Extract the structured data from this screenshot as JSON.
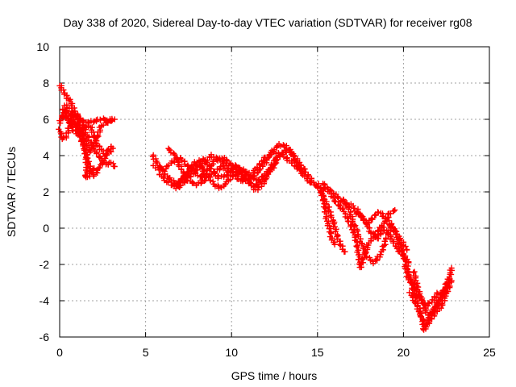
{
  "chart_data": {
    "type": "scatter",
    "title": "Day 338 of 2020, Sidereal Day-to-day VTEC variation (SDTVAR) for receiver rg08",
    "xlabel": "GPS time / hours",
    "ylabel": "SDTVAR / TECUs",
    "xlim": [
      0,
      25
    ],
    "ylim": [
      -6,
      10
    ],
    "xticks": [
      0,
      5,
      10,
      15,
      20,
      25
    ],
    "yticks": [
      -6,
      -4,
      -2,
      0,
      2,
      4,
      6,
      8,
      10
    ],
    "grid": true,
    "marker": "+",
    "series": [
      {
        "name": "SDTVAR",
        "color": "#ff0000",
        "tracks": [
          [
            [
              0.0,
              7.9
            ],
            [
              0.3,
              7.4
            ],
            [
              0.6,
              7.0
            ],
            [
              0.9,
              6.4
            ],
            [
              1.2,
              5.9
            ],
            [
              1.5,
              5.3
            ],
            [
              1.8,
              4.8
            ],
            [
              2.1,
              4.2
            ],
            [
              2.4,
              3.8
            ],
            [
              2.7,
              3.5
            ],
            [
              3.0,
              3.6
            ],
            [
              3.2,
              3.4
            ]
          ],
          [
            [
              0.0,
              5.8
            ],
            [
              0.3,
              6.5
            ],
            [
              0.6,
              6.3
            ],
            [
              0.9,
              5.7
            ],
            [
              1.2,
              5.0
            ],
            [
              1.4,
              4.5
            ],
            [
              1.6,
              3.9
            ],
            [
              1.8,
              3.2
            ],
            [
              2.0,
              2.9
            ],
            [
              2.3,
              3.3
            ],
            [
              2.7,
              4.0
            ],
            [
              3.1,
              4.4
            ]
          ],
          [
            [
              0.0,
              5.4
            ],
            [
              0.2,
              4.9
            ],
            [
              0.4,
              5.1
            ],
            [
              0.7,
              6.0
            ],
            [
              1.0,
              6.3
            ],
            [
              1.3,
              5.9
            ],
            [
              1.6,
              5.8
            ],
            [
              2.0,
              5.9
            ],
            [
              2.4,
              6.0
            ],
            [
              2.8,
              6.0
            ],
            [
              3.2,
              6.0
            ]
          ],
          [
            [
              0.1,
              6.2
            ],
            [
              0.5,
              6.0
            ],
            [
              0.9,
              5.8
            ],
            [
              1.3,
              5.4
            ],
            [
              1.6,
              4.6
            ],
            [
              1.8,
              4.2
            ],
            [
              2.1,
              4.8
            ],
            [
              2.4,
              5.6
            ],
            [
              2.7,
              5.8
            ],
            [
              3.0,
              5.9
            ]
          ],
          [
            [
              0.2,
              6.6
            ],
            [
              0.4,
              6.2
            ],
            [
              0.7,
              5.5
            ],
            [
              1.0,
              5.2
            ],
            [
              1.4,
              5.6
            ],
            [
              1.8,
              5.6
            ],
            [
              2.2,
              4.6
            ],
            [
              2.6,
              4.1
            ],
            [
              3.0,
              4.5
            ]
          ],
          [
            [
              0.3,
              6.8
            ],
            [
              0.6,
              6.5
            ],
            [
              1.0,
              6.1
            ],
            [
              1.4,
              4.8
            ],
            [
              1.6,
              3.3
            ],
            [
              1.5,
              2.8
            ],
            [
              1.7,
              2.9
            ],
            [
              2.0,
              3.3
            ]
          ],
          [
            [
              5.4,
              4.0
            ],
            [
              5.8,
              3.4
            ],
            [
              6.3,
              2.8
            ],
            [
              6.8,
              2.4
            ],
            [
              7.3,
              2.9
            ],
            [
              7.9,
              3.6
            ],
            [
              8.4,
              3.8
            ],
            [
              8.8,
              3.3
            ],
            [
              9.2,
              2.8
            ],
            [
              9.7,
              2.9
            ],
            [
              10.2,
              3.4
            ],
            [
              10.7,
              3.0
            ],
            [
              11.2,
              2.8
            ],
            [
              11.7,
              3.3
            ],
            [
              12.1,
              3.8
            ],
            [
              12.4,
              4.3
            ],
            [
              12.8,
              4.6
            ],
            [
              13.2,
              4.5
            ],
            [
              13.6,
              4.0
            ],
            [
              14.0,
              3.5
            ],
            [
              14.4,
              3.0
            ],
            [
              14.8,
              2.4
            ],
            [
              15.2,
              2.2
            ],
            [
              15.6,
              2.2
            ],
            [
              16.0,
              1.9
            ],
            [
              16.4,
              1.5
            ],
            [
              16.8,
              1.2
            ]
          ],
          [
            [
              5.5,
              3.4
            ],
            [
              6.0,
              3.2
            ],
            [
              6.5,
              3.6
            ],
            [
              7.0,
              3.9
            ],
            [
              7.4,
              3.5
            ],
            [
              7.8,
              3.1
            ],
            [
              8.2,
              2.8
            ],
            [
              8.6,
              3.2
            ],
            [
              9.0,
              3.7
            ],
            [
              9.5,
              3.9
            ],
            [
              10.0,
              3.5
            ],
            [
              10.5,
              3.3
            ],
            [
              11.0,
              3.0
            ],
            [
              11.5,
              2.6
            ],
            [
              12.0,
              3.0
            ],
            [
              12.5,
              3.6
            ],
            [
              13.0,
              4.2
            ],
            [
              13.4,
              4.3
            ],
            [
              13.8,
              3.6
            ],
            [
              14.2,
              2.9
            ],
            [
              14.6,
              2.5
            ]
          ],
          [
            [
              6.3,
              4.4
            ],
            [
              6.7,
              4.0
            ],
            [
              7.1,
              3.2
            ],
            [
              7.5,
              2.6
            ],
            [
              8.0,
              2.4
            ],
            [
              8.5,
              2.7
            ],
            [
              9.0,
              3.1
            ],
            [
              9.5,
              3.4
            ],
            [
              10.0,
              3.0
            ],
            [
              10.5,
              2.6
            ],
            [
              11.0,
              2.7
            ],
            [
              11.5,
              3.4
            ],
            [
              12.0,
              3.9
            ],
            [
              12.5,
              4.2
            ],
            [
              13.0,
              4.0
            ],
            [
              13.5,
              3.6
            ],
            [
              14.0,
              3.2
            ]
          ],
          [
            [
              5.8,
              3.0
            ],
            [
              6.2,
              2.6
            ],
            [
              6.6,
              2.3
            ],
            [
              7.0,
              2.6
            ],
            [
              7.4,
              3.0
            ],
            [
              7.8,
              3.5
            ],
            [
              8.2,
              3.4
            ],
            [
              8.6,
              2.9
            ],
            [
              9.0,
              2.4
            ],
            [
              9.4,
              2.2
            ],
            [
              9.8,
              2.6
            ],
            [
              10.2,
              3.0
            ],
            [
              10.6,
              3.2
            ],
            [
              11.0,
              2.6
            ],
            [
              11.4,
              2.1
            ],
            [
              11.8,
              2.4
            ],
            [
              12.2,
              3.2
            ],
            [
              12.6,
              3.9
            ]
          ],
          [
            [
              6.8,
              2.2
            ],
            [
              7.1,
              2.4
            ],
            [
              7.4,
              2.7
            ],
            [
              8.0,
              3.2
            ],
            [
              8.8,
              4.0
            ],
            [
              9.4,
              3.7
            ],
            [
              10.0,
              3.3
            ],
            [
              10.6,
              2.8
            ],
            [
              11.3,
              2.3
            ],
            [
              11.9,
              2.7
            ],
            [
              12.6,
              3.6
            ]
          ],
          [
            [
              15.0,
              2.4
            ],
            [
              15.3,
              1.8
            ],
            [
              15.6,
              1.2
            ],
            [
              15.9,
              0.4
            ],
            [
              16.2,
              -0.6
            ],
            [
              16.5,
              -1.2
            ],
            [
              16.6,
              -1.3
            ]
          ],
          [
            [
              15.2,
              2.2
            ],
            [
              15.4,
              1.3
            ],
            [
              15.5,
              0.6
            ],
            [
              15.7,
              0.0
            ],
            [
              15.8,
              -0.5
            ],
            [
              16.0,
              -0.9
            ]
          ],
          [
            [
              15.3,
              2.5
            ],
            [
              15.7,
              2.0
            ],
            [
              16.1,
              1.4
            ],
            [
              16.5,
              1.0
            ],
            [
              16.8,
              0.4
            ],
            [
              17.1,
              -0.2
            ],
            [
              17.3,
              -0.9
            ],
            [
              17.4,
              -1.6
            ],
            [
              17.5,
              -2.2
            ],
            [
              17.7,
              -1.5
            ],
            [
              18.0,
              -0.8
            ],
            [
              18.4,
              -0.3
            ],
            [
              18.8,
              0.2
            ],
            [
              19.2,
              0.8
            ],
            [
              19.5,
              1.0
            ]
          ],
          [
            [
              16.5,
              1.6
            ],
            [
              16.8,
              1.2
            ],
            [
              17.0,
              0.5
            ],
            [
              17.3,
              -0.2
            ],
            [
              17.6,
              -0.9
            ],
            [
              17.9,
              -1.6
            ],
            [
              18.3,
              -1.9
            ],
            [
              18.7,
              -1.4
            ],
            [
              19.0,
              -0.6
            ],
            [
              19.3,
              0.2
            ],
            [
              19.6,
              -0.4
            ],
            [
              19.9,
              -1.2
            ],
            [
              20.1,
              -1.8
            ],
            [
              20.3,
              -2.4
            ]
          ],
          [
            [
              17.0,
              1.3
            ],
            [
              17.3,
              0.8
            ],
            [
              17.7,
              0.5
            ],
            [
              18.1,
              -0.2
            ],
            [
              18.5,
              -0.6
            ],
            [
              18.8,
              0.0
            ],
            [
              19.2,
              -0.4
            ],
            [
              19.6,
              -1.1
            ],
            [
              20.0,
              -1.5
            ],
            [
              20.3,
              -1.9
            ]
          ],
          [
            [
              17.3,
              1.0
            ],
            [
              17.6,
              0.6
            ],
            [
              17.9,
              0.2
            ],
            [
              18.2,
              0.6
            ],
            [
              18.6,
              0.9
            ],
            [
              19.0,
              0.5
            ],
            [
              19.4,
              0.0
            ],
            [
              19.8,
              -0.6
            ],
            [
              20.2,
              -1.2
            ]
          ],
          [
            [
              20.1,
              -2.1
            ],
            [
              20.3,
              -2.6
            ],
            [
              20.5,
              -3.2
            ],
            [
              20.7,
              -3.8
            ],
            [
              20.9,
              -4.4
            ],
            [
              21.1,
              -5.0
            ],
            [
              21.2,
              -5.6
            ],
            [
              21.4,
              -5.2
            ],
            [
              21.6,
              -4.7
            ],
            [
              21.9,
              -4.3
            ],
            [
              22.2,
              -3.8
            ],
            [
              22.5,
              -3.2
            ],
            [
              22.7,
              -2.8
            ]
          ],
          [
            [
              20.2,
              -2.6
            ],
            [
              20.5,
              -3.0
            ],
            [
              20.8,
              -3.5
            ],
            [
              21.1,
              -4.0
            ],
            [
              21.3,
              -4.6
            ],
            [
              21.5,
              -4.9
            ],
            [
              21.8,
              -4.5
            ],
            [
              22.1,
              -3.9
            ],
            [
              22.4,
              -3.3
            ],
            [
              22.7,
              -2.6
            ],
            [
              22.8,
              -2.2
            ]
          ],
          [
            [
              20.6,
              -2.4
            ],
            [
              20.8,
              -3.2
            ],
            [
              21.0,
              -3.9
            ],
            [
              21.3,
              -4.3
            ],
            [
              21.7,
              -4.0
            ],
            [
              22.0,
              -3.6
            ],
            [
              22.3,
              -3.6
            ],
            [
              22.6,
              -3.1
            ],
            [
              22.8,
              -2.9
            ]
          ],
          [
            [
              20.4,
              -3.6
            ],
            [
              20.7,
              -4.1
            ],
            [
              21.0,
              -4.8
            ],
            [
              21.3,
              -5.4
            ],
            [
              21.6,
              -5.0
            ],
            [
              21.9,
              -4.6
            ],
            [
              22.2,
              -4.3
            ],
            [
              22.5,
              -3.6
            ],
            [
              22.7,
              -3.2
            ]
          ]
        ]
      }
    ]
  }
}
